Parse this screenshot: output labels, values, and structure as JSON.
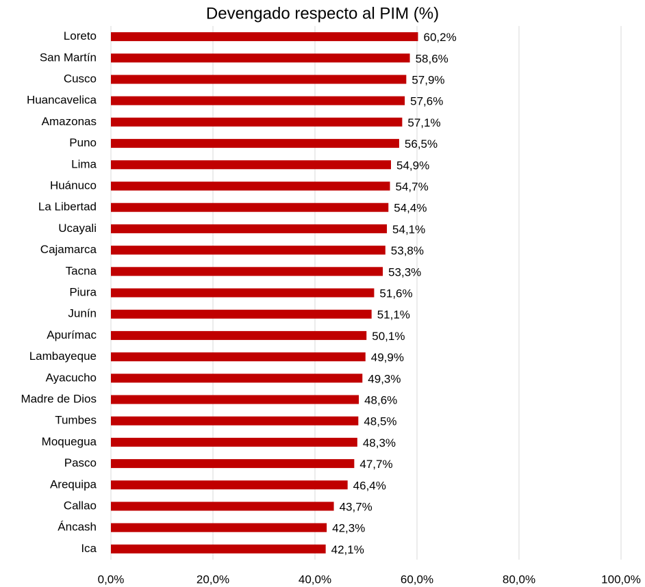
{
  "chart_data": {
    "type": "bar",
    "orientation": "horizontal",
    "title": "Devengado respecto al PIM (%)",
    "categories": [
      "Loreto",
      "San Martín",
      "Cusco",
      "Huancavelica",
      "Amazonas",
      "Puno",
      "Lima",
      "Huánuco",
      "La Libertad",
      "Ucayali",
      "Cajamarca",
      "Tacna",
      "Piura",
      "Junín",
      "Apurímac",
      "Lambayeque",
      "Ayacucho",
      "Madre de Dios",
      "Tumbes",
      "Moquegua",
      "Pasco",
      "Arequipa",
      "Callao",
      "Áncash",
      "Ica"
    ],
    "values": [
      60.2,
      58.6,
      57.9,
      57.6,
      57.1,
      56.5,
      54.9,
      54.7,
      54.4,
      54.1,
      53.8,
      53.3,
      51.6,
      51.1,
      50.1,
      49.9,
      49.3,
      48.6,
      48.5,
      48.3,
      47.7,
      46.4,
      43.7,
      42.3,
      42.1
    ],
    "value_labels": [
      "60,2%",
      "58,6%",
      "57,9%",
      "57,6%",
      "57,1%",
      "56,5%",
      "54,9%",
      "54,7%",
      "54,4%",
      "54,1%",
      "53,8%",
      "53,3%",
      "51,6%",
      "51,1%",
      "50,1%",
      "49,9%",
      "49,3%",
      "48,6%",
      "48,5%",
      "48,3%",
      "47,7%",
      "46,4%",
      "43,7%",
      "42,3%",
      "42,1%"
    ],
    "color": "#c00000",
    "xlim": [
      0,
      100
    ],
    "xticks": [
      {
        "value": 0,
        "label": "0,0%"
      },
      {
        "value": 20,
        "label": "20,0%"
      },
      {
        "value": 40,
        "label": "40,0%"
      },
      {
        "value": 60,
        "label": "60,0%"
      },
      {
        "value": 80,
        "label": "80,0%"
      },
      {
        "value": 100,
        "label": "100,0%"
      }
    ],
    "grid": true
  }
}
